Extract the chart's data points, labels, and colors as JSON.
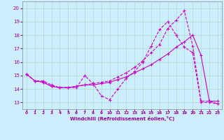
{
  "xlabel": "Windchill (Refroidissement éolien,°C)",
  "bg_color": "#cceeff",
  "grid_color": "#aaddcc",
  "line_color": "#cc00cc",
  "x_ticks": [
    0,
    1,
    2,
    3,
    4,
    5,
    6,
    7,
    8,
    9,
    10,
    11,
    12,
    13,
    14,
    15,
    16,
    17,
    18,
    19,
    20,
    21,
    22,
    23
  ],
  "ylim": [
    12.5,
    20.5
  ],
  "xlim": [
    -0.5,
    23.5
  ],
  "yticks": [
    13,
    14,
    15,
    16,
    17,
    18,
    19,
    20
  ],
  "line1_x": [
    0,
    1,
    2,
    3,
    4,
    5,
    6,
    7,
    8,
    9,
    10,
    11,
    12,
    13,
    14,
    15,
    16,
    17,
    18,
    19,
    20,
    21,
    22,
    23
  ],
  "line1_y": [
    15.1,
    14.6,
    14.6,
    14.3,
    14.1,
    14.1,
    14.1,
    15.0,
    14.4,
    13.5,
    13.2,
    14.0,
    14.8,
    15.3,
    16.0,
    17.2,
    18.4,
    19.0,
    18.0,
    17.1,
    16.7,
    13.0,
    13.0,
    12.9
  ],
  "line2_x": [
    0,
    1,
    2,
    3,
    4,
    5,
    6,
    7,
    8,
    9,
    10,
    11,
    12,
    13,
    14,
    15,
    16,
    17,
    18,
    19,
    20,
    21,
    22,
    23
  ],
  "line2_y": [
    15.1,
    14.6,
    14.5,
    14.2,
    14.1,
    14.1,
    14.2,
    14.3,
    14.3,
    14.4,
    14.5,
    14.7,
    14.9,
    15.2,
    15.5,
    15.8,
    16.2,
    16.6,
    17.1,
    17.5,
    18.0,
    16.5,
    13.1,
    13.1
  ],
  "line3_x": [
    0,
    1,
    2,
    3,
    4,
    5,
    6,
    7,
    8,
    9,
    10,
    11,
    12,
    13,
    14,
    15,
    16,
    17,
    18,
    19,
    20,
    21,
    22,
    23
  ],
  "line3_y": [
    15.1,
    14.6,
    14.5,
    14.2,
    14.1,
    14.1,
    14.2,
    14.3,
    14.4,
    14.5,
    14.6,
    14.9,
    15.2,
    15.6,
    16.1,
    16.7,
    17.3,
    18.5,
    19.1,
    19.8,
    17.2,
    13.1,
    13.1,
    12.9
  ]
}
